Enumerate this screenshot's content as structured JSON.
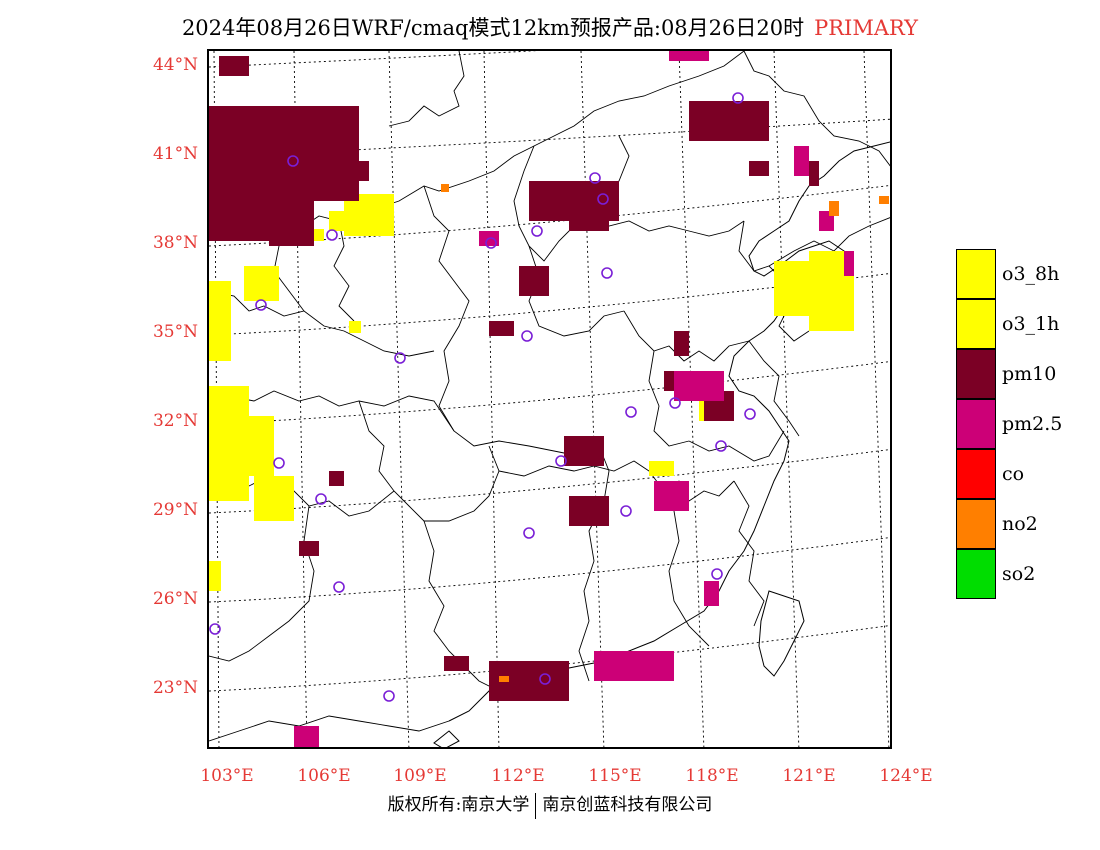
{
  "title": {
    "main": "2024年08月26日WRF/cmaq模式12km预报产品:08月26日20时",
    "tag": "PRIMARY"
  },
  "axes": {
    "lat_labels": [
      "44°N",
      "41°N",
      "38°N",
      "35°N",
      "32°N",
      "29°N",
      "26°N",
      "23°N"
    ],
    "lon_labels": [
      "103°E",
      "106°E",
      "109°E",
      "112°E",
      "115°E",
      "118°E",
      "121°E",
      "124°E"
    ]
  },
  "legend": [
    {
      "label": "o3_8h",
      "color": "#ffff00"
    },
    {
      "label": "o3_1h",
      "color": "#ffff00"
    },
    {
      "label": "pm10",
      "color": "#7b0025"
    },
    {
      "label": "pm2.5",
      "color": "#cc0077"
    },
    {
      "label": "co",
      "color": "#ff0000"
    },
    {
      "label": "no2",
      "color": "#ff7f00"
    },
    {
      "label": "so2",
      "color": "#00dd00"
    }
  ],
  "copyright": {
    "left": "版权所有:南京大学",
    "right": "南京创蓝科技有限公司"
  }
}
